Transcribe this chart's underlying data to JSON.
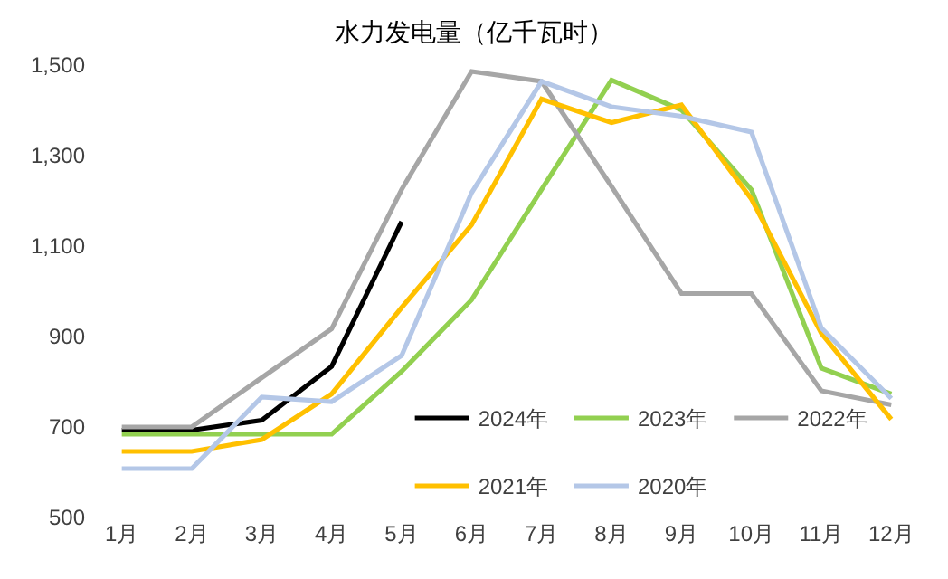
{
  "chart_data": {
    "type": "line",
    "title": "水力发电量（亿千瓦时）",
    "categories": [
      "1月",
      "2月",
      "3月",
      "4月",
      "5月",
      "6月",
      "7月",
      "8月",
      "9月",
      "10月",
      "11月",
      "12月"
    ],
    "series": [
      {
        "name": "2024年",
        "color": "#000000",
        "values": [
          693,
          693,
          715,
          834,
          1154,
          null,
          null,
          null,
          null,
          null,
          null,
          null
        ]
      },
      {
        "name": "2023年",
        "color": "#92d050",
        "values": [
          684,
          684,
          684,
          684,
          823,
          981,
          1225,
          1467,
          1401,
          1225,
          830,
          773
        ]
      },
      {
        "name": "2022年",
        "color": "#a6a6a6",
        "values": [
          700,
          700,
          809,
          917,
          1225,
          1486,
          1464,
          1232,
          995,
          995,
          780,
          749
        ]
      },
      {
        "name": "2021年",
        "color": "#ffc000",
        "values": [
          646,
          646,
          672,
          773,
          964,
          1147,
          1425,
          1373,
          1412,
          1204,
          907,
          717
        ]
      },
      {
        "name": "2020年",
        "color": "#b4c7e7",
        "values": [
          608,
          608,
          766,
          756,
          858,
          1218,
          1464,
          1408,
          1387,
          1352,
          919,
          763
        ]
      }
    ],
    "ylim": [
      500,
      1500
    ],
    "yticks": [
      {
        "value": 500,
        "label": "500"
      },
      {
        "value": 700,
        "label": "700"
      },
      {
        "value": 900,
        "label": "900"
      },
      {
        "value": 1100,
        "label": "1,100"
      },
      {
        "value": 1300,
        "label": "1,300"
      },
      {
        "value": 1500,
        "label": "1,500"
      }
    ],
    "grid": false,
    "legend": "bottom",
    "marker": "none",
    "line_style": "solid"
  }
}
